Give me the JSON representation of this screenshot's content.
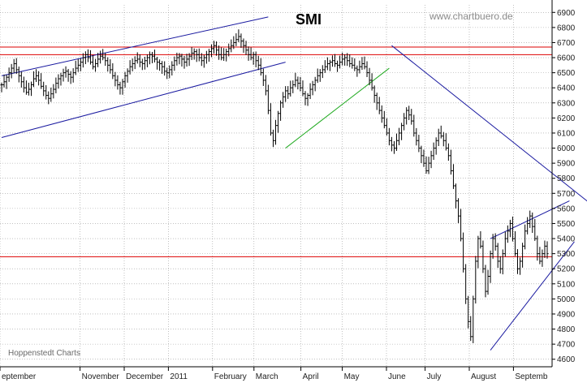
{
  "chart_data": {
    "type": "line",
    "style": "ohlc-bars",
    "title": "SMI",
    "watermark": "www.chartbuero.de",
    "source": "Hoppenstedt Charts",
    "ylim": [
      4550,
      6950
    ],
    "y_ticks": [
      4600,
      4700,
      4800,
      4900,
      5000,
      5100,
      5200,
      5300,
      5400,
      5500,
      5600,
      5700,
      5800,
      5900,
      6000,
      6100,
      6200,
      6300,
      6400,
      6500,
      6600,
      6700,
      6800,
      6900
    ],
    "grid": true,
    "x_labels": [
      "eptember",
      "November",
      "December",
      "2011",
      "February",
      "March",
      "April",
      "May",
      "June",
      "July",
      "August",
      "Septemb"
    ],
    "colors": {
      "bars": "#000000",
      "support_resistance": "#dd0000",
      "trendline": "#1a1aa0",
      "uptrend_line": "#22aa22",
      "grid": "#9a9a9a"
    },
    "levels": [
      6670,
      6620,
      5280
    ],
    "series": [
      {
        "close": [
          6420,
          6440,
          6470,
          6500,
          6530,
          6560,
          6520,
          6480,
          6440,
          6400,
          6370,
          6390,
          6420,
          6460,
          6480,
          6450,
          6410,
          6380,
          6350,
          6330,
          6360,
          6390,
          6430,
          6460,
          6480,
          6500,
          6510,
          6490,
          6470,
          6500,
          6530,
          6550,
          6570,
          6600,
          6620,
          6600,
          6570,
          6540,
          6560,
          6590,
          6610,
          6600,
          6580,
          6550,
          6520,
          6480,
          6450,
          6420,
          6400,
          6440,
          6480,
          6510,
          6540,
          6560,
          6580,
          6590,
          6570,
          6560,
          6580,
          6600,
          6620,
          6610,
          6590,
          6570,
          6560,
          6540,
          6510,
          6500,
          6520,
          6550,
          6580,
          6600,
          6610,
          6590,
          6570,
          6590,
          6610,
          6630,
          6640,
          6620,
          6600,
          6580,
          6600,
          6620,
          6640,
          6660,
          6680,
          6650,
          6620,
          6600,
          6620,
          6640,
          6660,
          6680,
          6700,
          6720,
          6740,
          6710,
          6680,
          6650,
          6620,
          6600,
          6620,
          6580,
          6550,
          6500,
          6450,
          6380,
          6250,
          6100,
          6050,
          6150,
          6230,
          6300,
          6340,
          6380,
          6360,
          6400,
          6420,
          6450,
          6430,
          6400,
          6360,
          6330,
          6350,
          6390,
          6420,
          6450,
          6480,
          6500,
          6520,
          6540,
          6560,
          6570,
          6580,
          6560,
          6550,
          6570,
          6590,
          6600,
          6580,
          6560,
          6550,
          6530,
          6520,
          6540,
          6560,
          6540,
          6500,
          6450,
          6400,
          6350,
          6300,
          6250,
          6200,
          6150,
          6100,
          6050,
          6020,
          6000,
          6050,
          6100,
          6150,
          6200,
          6250,
          6220,
          6180,
          6100,
          6050,
          6000,
          5950,
          5900,
          5850,
          5900,
          5950,
          6000,
          6050,
          6100,
          6080,
          6050,
          6000,
          5950,
          5850,
          5750,
          5650,
          5550,
          5400,
          5200,
          5000,
          4850,
          4750,
          5000,
          5250,
          5400,
          5350,
          5200,
          5050,
          5150,
          5300,
          5400,
          5350,
          5250,
          5200,
          5300,
          5400,
          5450,
          5500,
          5400,
          5300,
          5200,
          5250,
          5350,
          5450,
          5500,
          5550,
          5480,
          5400,
          5300,
          5250,
          5300,
          5350,
          5300
        ]
      }
    ],
    "trendlines": [
      {
        "name": "upper-channel",
        "x0": 0,
        "y0": 6480,
        "x1": 108,
        "y1": 6870
      },
      {
        "name": "lower-channel",
        "x0": 0,
        "y0": 6070,
        "x1": 115,
        "y1": 6570
      },
      {
        "name": "recovery",
        "x0": 115,
        "y0": 6000,
        "x1": 157,
        "y1": 6530
      },
      {
        "name": "downtrend",
        "x0": 158,
        "y0": 6680,
        "x1": 244,
        "y1": 5560
      },
      {
        "name": "triangle-top",
        "x0": 198,
        "y0": 5400,
        "x1": 230,
        "y1": 5650
      },
      {
        "name": "triangle-bottom",
        "x0": 198,
        "y0": 4660,
        "x1": 232,
        "y1": 5380
      }
    ]
  }
}
